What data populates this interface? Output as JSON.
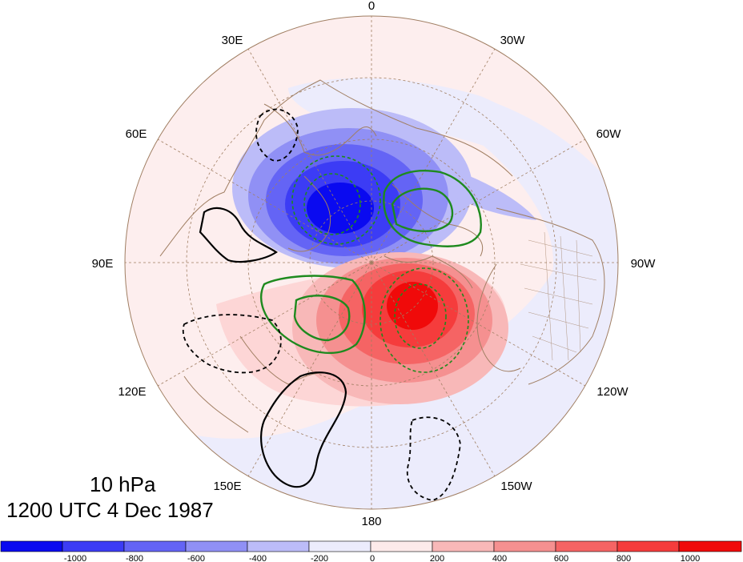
{
  "map": {
    "projection": "north-polar-stereographic",
    "longitude_labels": [
      "0",
      "30W",
      "60W",
      "90W",
      "120W",
      "150W",
      "180",
      "150E",
      "120E",
      "90E",
      "60E",
      "30E"
    ],
    "colors": {
      "coastline": "#a07e62",
      "grid": "#a07e62",
      "anomaly_positive": "#ff1e1e",
      "anomaly_negative": "#1e1eff",
      "contour_green": "#1e8a1e",
      "contour_black": "#000000"
    }
  },
  "title": {
    "level": "10 hPa",
    "time": "1200 UTC 4 Dec 1987"
  },
  "colorbar": {
    "bins": [
      {
        "color": "#0a0af0"
      },
      {
        "color": "#3c3cf5"
      },
      {
        "color": "#6464f5"
      },
      {
        "color": "#9090f5"
      },
      {
        "color": "#bcbcf8"
      },
      {
        "color": "#ececfc"
      },
      {
        "color": "#fdeaea"
      },
      {
        "color": "#f8b8b8"
      },
      {
        "color": "#f59090"
      },
      {
        "color": "#f56464"
      },
      {
        "color": "#f53c3c"
      },
      {
        "color": "#f00a0a"
      }
    ],
    "tick_labels": [
      "-1000",
      "-800",
      "-600",
      "-400",
      "-200",
      "0",
      "200",
      "400",
      "600",
      "800",
      "1000"
    ]
  }
}
